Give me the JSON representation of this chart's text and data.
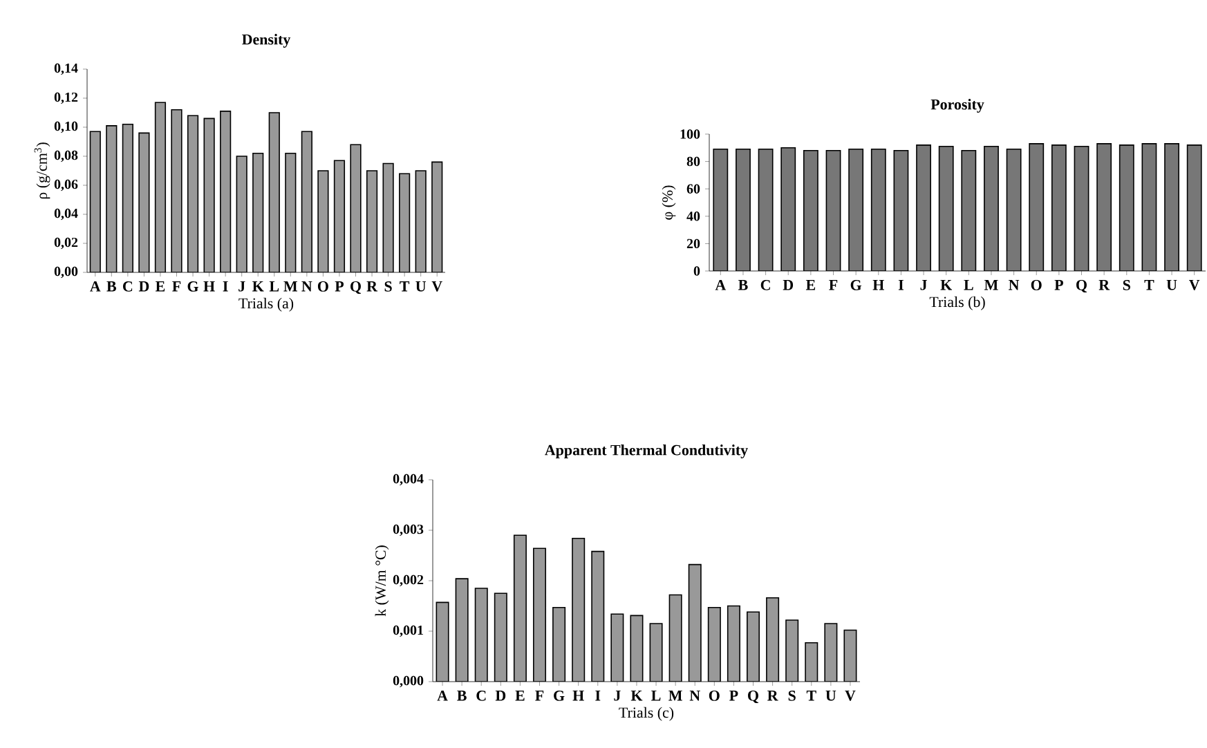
{
  "chart_data": [
    {
      "type": "bar",
      "title": "Density",
      "xlabel": "Trials (a)",
      "ylabel": "ρ (g/cm$^{3}$)",
      "color": "#999999",
      "categories": [
        "A",
        "B",
        "C",
        "D",
        "E",
        "F",
        "G",
        "H",
        "I",
        "J",
        "K",
        "L",
        "M",
        "N",
        "O",
        "P",
        "Q",
        "R",
        "S",
        "T",
        "U",
        "V"
      ],
      "values": [
        0.097,
        0.101,
        0.102,
        0.096,
        0.117,
        0.112,
        0.108,
        0.106,
        0.111,
        0.08,
        0.082,
        0.11,
        0.082,
        0.097,
        0.07,
        0.077,
        0.088,
        0.07,
        0.075,
        0.068,
        0.07,
        0.076
      ],
      "ylim": [
        0,
        0.14
      ],
      "yticks": [
        {
          "value": 0,
          "label": "0,00"
        },
        {
          "value": 0.02,
          "label": "0,02"
        },
        {
          "value": 0.04,
          "label": "0,04"
        },
        {
          "value": 0.06,
          "label": "0,06"
        },
        {
          "value": 0.08,
          "label": "0,08"
        },
        {
          "value": 0.1,
          "label": "0,10"
        },
        {
          "value": 0.12,
          "label": "0,12"
        },
        {
          "value": 0.14,
          "label": "0,14"
        }
      ]
    },
    {
      "type": "bar",
      "title": "Porosity",
      "xlabel": "Trials (b)",
      "ylabel": "φ (%)",
      "color": "#777777",
      "categories": [
        "A",
        "B",
        "C",
        "D",
        "E",
        "F",
        "G",
        "H",
        "I",
        "J",
        "K",
        "L",
        "M",
        "N",
        "O",
        "P",
        "Q",
        "R",
        "S",
        "T",
        "U",
        "V"
      ],
      "values": [
        89,
        89,
        89,
        90,
        88,
        88,
        89,
        89,
        88,
        92,
        91,
        88,
        91,
        89,
        93,
        92,
        91,
        93,
        92,
        93,
        93,
        92
      ],
      "ylim": [
        0,
        100
      ],
      "yticks": [
        0,
        20,
        40,
        60,
        80,
        100
      ]
    },
    {
      "type": "bar",
      "title": "Apparent Thermal Condutivity",
      "xlabel": "Trials (c)",
      "ylabel": "k (W/m °C)",
      "color": "#999999",
      "categories": [
        "A",
        "B",
        "C",
        "D",
        "E",
        "F",
        "G",
        "H",
        "I",
        "J",
        "K",
        "L",
        "M",
        "N",
        "O",
        "P",
        "Q",
        "R",
        "S",
        "T",
        "U",
        "V"
      ],
      "values": [
        0.00157,
        0.00204,
        0.00185,
        0.00175,
        0.0029,
        0.00264,
        0.00147,
        0.00284,
        0.00258,
        0.00134,
        0.00131,
        0.00115,
        0.00172,
        0.00232,
        0.00147,
        0.0015,
        0.00138,
        0.00166,
        0.00122,
        0.00077,
        0.00115,
        0.00102
      ],
      "ylim": [
        0,
        0.004
      ],
      "yticks": [
        {
          "value": 0,
          "label": "0,000"
        },
        {
          "value": 0.001,
          "label": "0,001"
        },
        {
          "value": 0.002,
          "label": "0,002"
        },
        {
          "value": 0.003,
          "label": "0,003"
        },
        {
          "value": 0.004,
          "label": "0,004"
        }
      ]
    }
  ]
}
